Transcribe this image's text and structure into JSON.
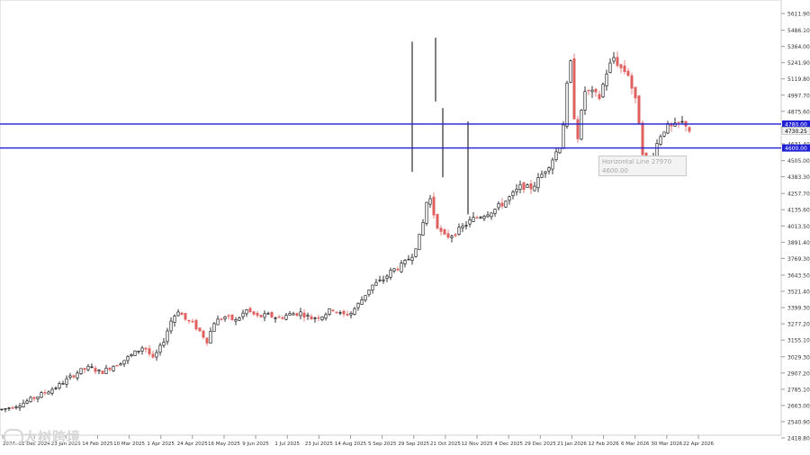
{
  "chart_data": {
    "type": "candlestick",
    "y_ticks": [
      "5611.90",
      "5486.10",
      "5364.00",
      "5241.90",
      "5119.80",
      "4997.70",
      "4875.60",
      "4753.50",
      "4631.40",
      "4505.00",
      "4383.30",
      "4257.70",
      "4135.60",
      "4013.50",
      "3891.40",
      "3769.30",
      "3643.50",
      "3521.40",
      "3399.30",
      "3277.20",
      "3155.10",
      "3029.30",
      "2907.20",
      "2785.10",
      "2663.00",
      "2540.90",
      "2418.80"
    ],
    "x_ticks": [
      "2024",
      "31 Dec 2024",
      "23 Jan 2025",
      "14 Feb 2025",
      "10 Mar 2025",
      "1 Apr 2025",
      "24 Apr 2025",
      "16 May 2025",
      "9 Jun 2025",
      "1 Jul 2025",
      "23 Jul 2025",
      "14 Aug 2025",
      "5 Sep 2025",
      "29 Sep 2025",
      "21 Oct 2025",
      "12 Nov 2025",
      "4 Dec 2025",
      "29 Dec 2025",
      "21 Jan 2026",
      "12 Feb 2026",
      "6 Mar 2026",
      "30 Mar 2026",
      "22 Apr 2026"
    ],
    "ylim": [
      2418.8,
      5674
    ],
    "price_points": [
      [
        0,
        2630
      ],
      [
        12,
        2650
      ],
      [
        25,
        2680
      ],
      [
        38,
        2720
      ],
      [
        50,
        2760
      ],
      [
        62,
        2800
      ],
      [
        75,
        2860
      ],
      [
        88,
        2920
      ],
      [
        100,
        2950
      ],
      [
        112,
        2910
      ],
      [
        125,
        2960
      ],
      [
        137,
        3000
      ],
      [
        150,
        3060
      ],
      [
        160,
        3110
      ],
      [
        170,
        3010
      ],
      [
        180,
        3120
      ],
      [
        190,
        3300
      ],
      [
        198,
        3380
      ],
      [
        206,
        3310
      ],
      [
        214,
        3280
      ],
      [
        222,
        3220
      ],
      [
        230,
        3150
      ],
      [
        238,
        3290
      ],
      [
        250,
        3330
      ],
      [
        262,
        3300
      ],
      [
        274,
        3380
      ],
      [
        286,
        3330
      ],
      [
        298,
        3340
      ],
      [
        310,
        3320
      ],
      [
        322,
        3350
      ],
      [
        334,
        3360
      ],
      [
        346,
        3320
      ],
      [
        358,
        3340
      ],
      [
        370,
        3390
      ],
      [
        380,
        3340
      ],
      [
        390,
        3360
      ],
      [
        400,
        3440
      ],
      [
        412,
        3560
      ],
      [
        424,
        3600
      ],
      [
        436,
        3680
      ],
      [
        448,
        3720
      ],
      [
        458,
        3800
      ],
      [
        468,
        3960
      ],
      [
        476,
        4270
      ],
      [
        484,
        4050
      ],
      [
        492,
        3930
      ],
      [
        500,
        3940
      ],
      [
        510,
        3980
      ],
      [
        520,
        4040
      ],
      [
        530,
        4080
      ],
      [
        540,
        4110
      ],
      [
        550,
        4140
      ],
      [
        560,
        4190
      ],
      [
        570,
        4250
      ],
      [
        580,
        4320
      ],
      [
        588,
        4290
      ],
      [
        596,
        4340
      ],
      [
        604,
        4420
      ],
      [
        614,
        4520
      ],
      [
        622,
        4620
      ],
      [
        628,
        4870
      ],
      [
        633,
        5350
      ],
      [
        637,
        4880
      ],
      [
        642,
        4690
      ],
      [
        650,
        5030
      ],
      [
        658,
        5010
      ],
      [
        666,
        4980
      ],
      [
        674,
        5170
      ],
      [
        682,
        5280
      ],
      [
        690,
        5200
      ],
      [
        698,
        5160
      ],
      [
        706,
        4950
      ],
      [
        712,
        4720
      ],
      [
        716,
        4430
      ],
      [
        722,
        4470
      ],
      [
        728,
        4600
      ],
      [
        734,
        4700
      ],
      [
        740,
        4760
      ],
      [
        748,
        4750
      ],
      [
        756,
        4790
      ],
      [
        762,
        4780
      ],
      [
        766,
        4734
      ]
    ],
    "spikes": [
      {
        "i": 41,
        "low": 4420,
        "high": 5400
      },
      {
        "i": 44,
        "low": 4950,
        "high": 5430
      },
      {
        "i": 48,
        "low": 4100,
        "high": 4800
      },
      {
        "i": 45,
        "low": 4380,
        "high": 4900
      }
    ],
    "horizontal_lines": [
      {
        "label": "4780.00",
        "value": 4780.0
      },
      {
        "label": "4600.00",
        "value": 4600.0
      }
    ],
    "current_price": {
      "label": "4730.25",
      "value": 4730.25
    },
    "annotation": {
      "line1": "Horizontal Line 27970",
      "line2": "4600.00"
    }
  },
  "colors": {
    "bull": "#000000",
    "bear": "#e06060",
    "hline": "#1f1fd6",
    "label_bg": "#1f1fd6",
    "price_bg": "#f0f0f0"
  },
  "watermark": "大树跨境"
}
